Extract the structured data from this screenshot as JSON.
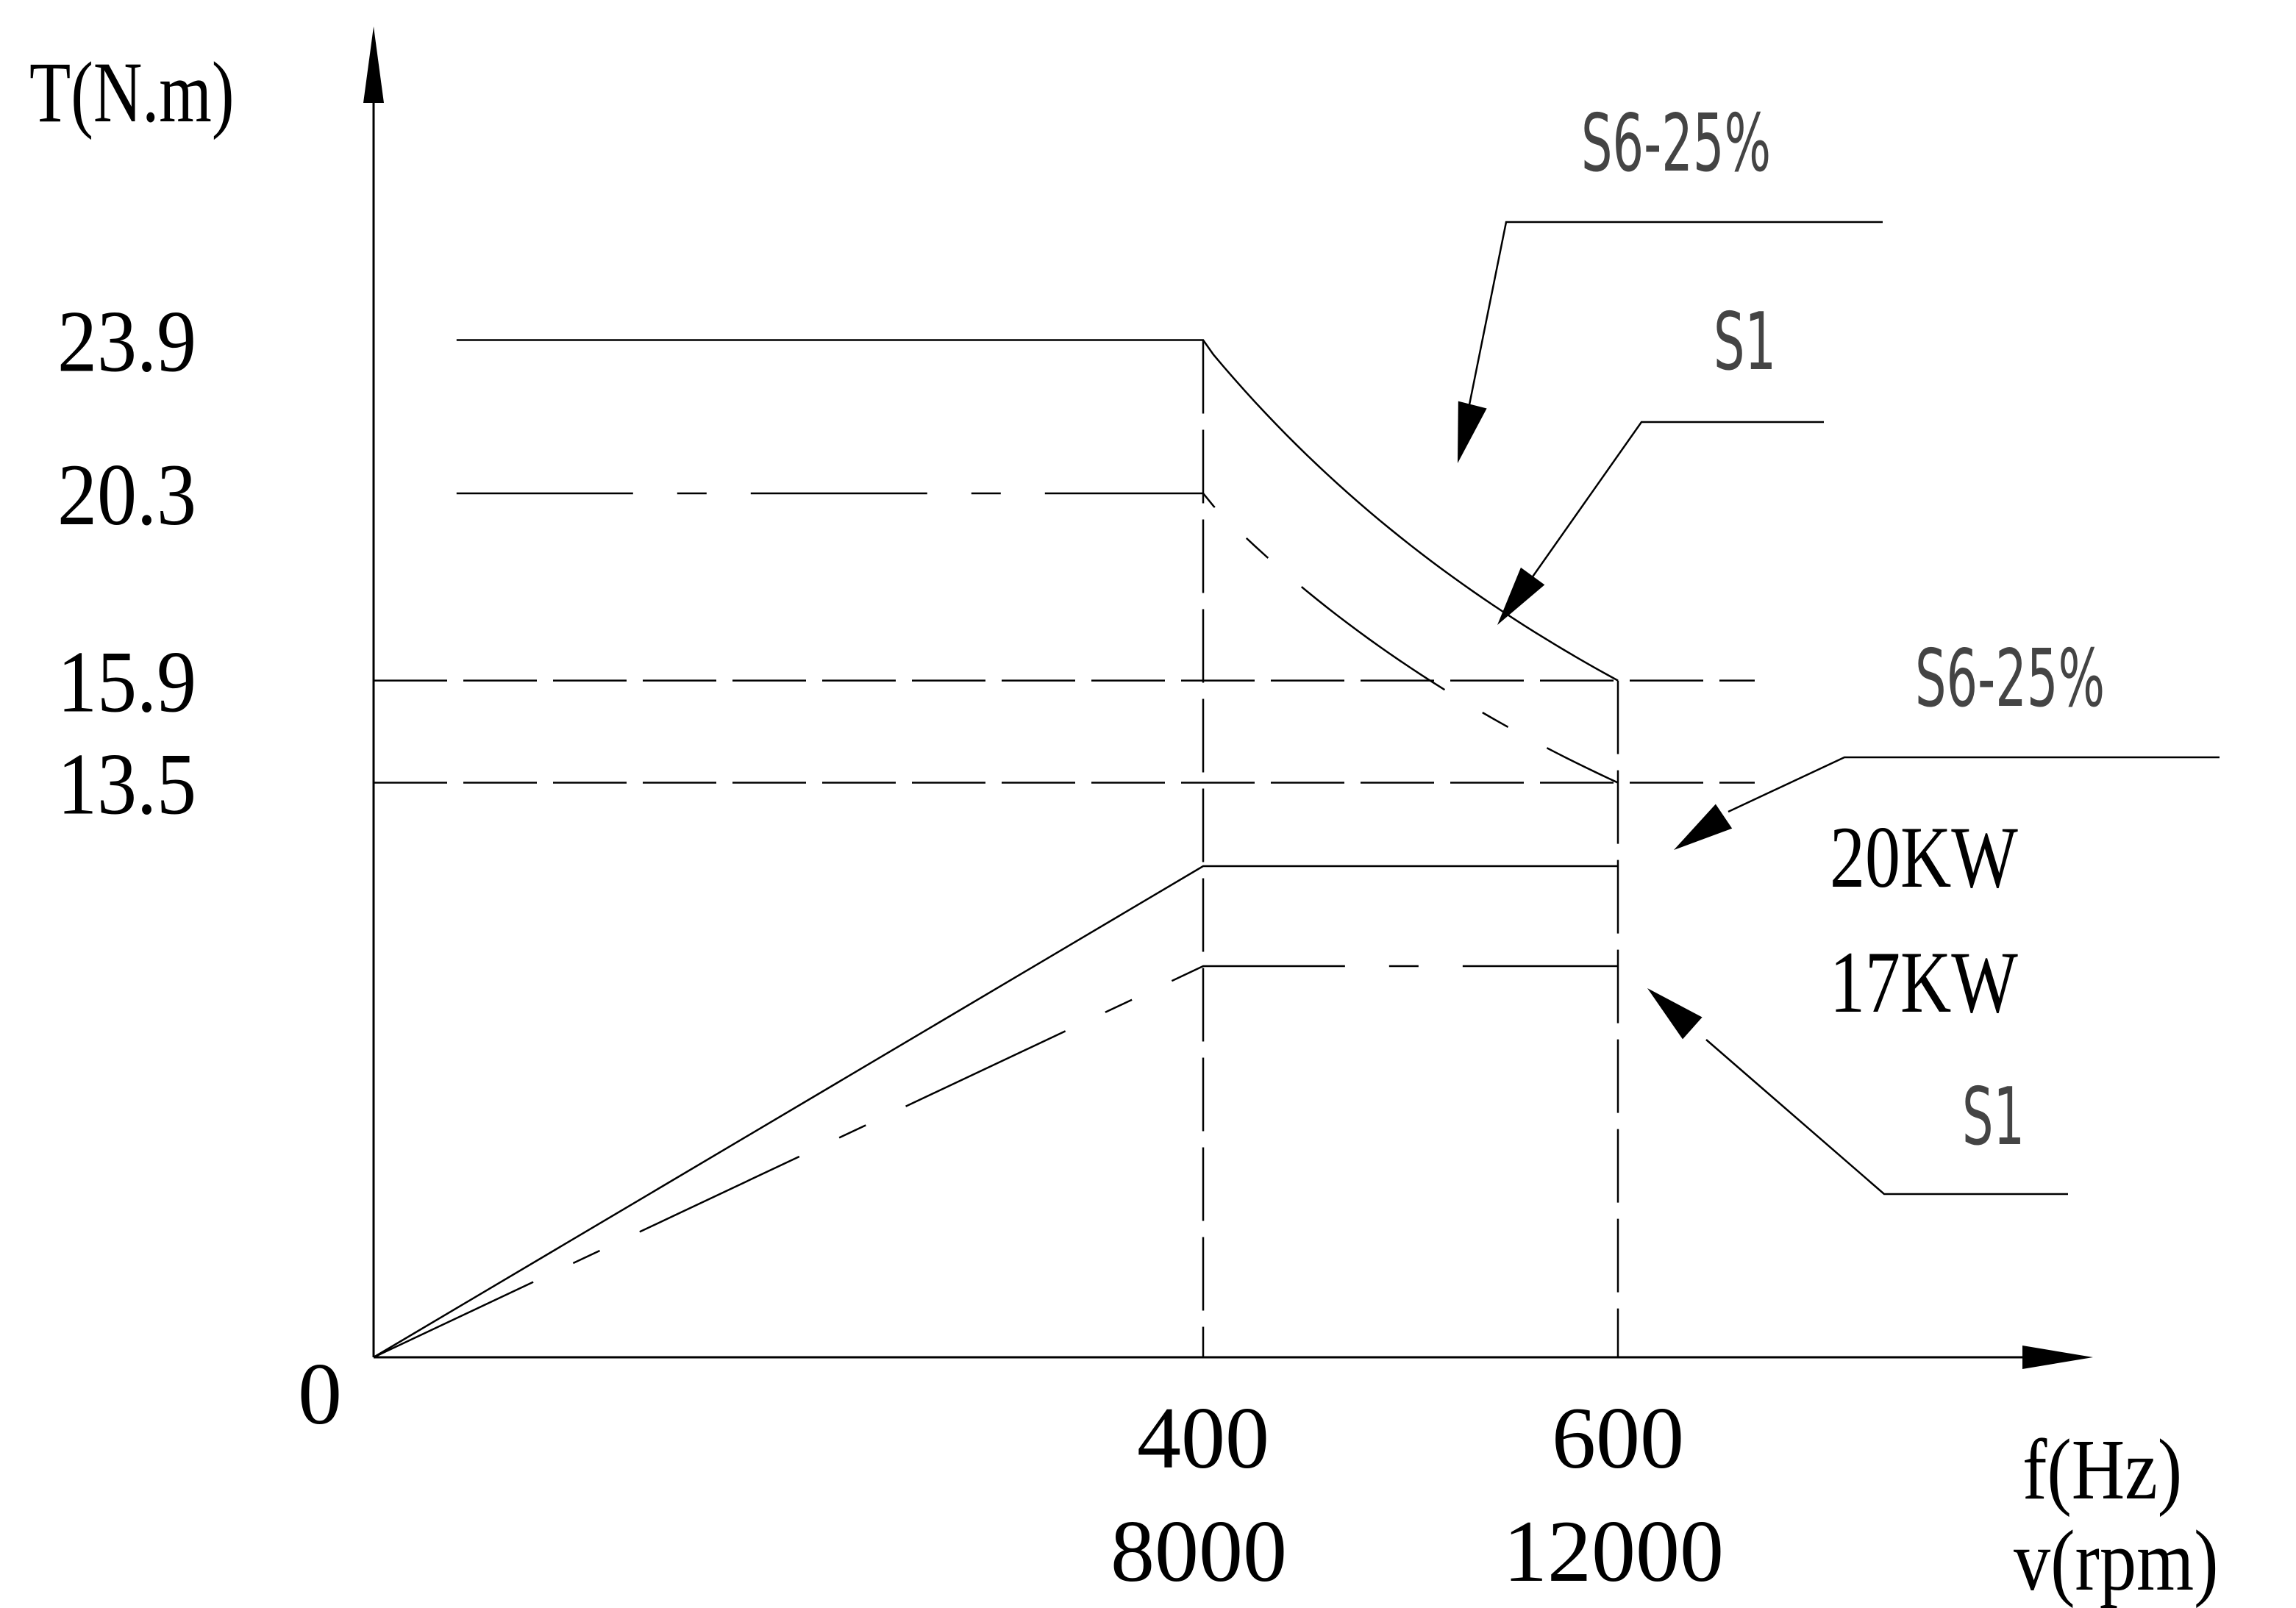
{
  "chart_data": {
    "type": "line",
    "title": "",
    "ylabel": "T(N.m)",
    "xlabel": "f(Hz)",
    "xlabel_secondary": "v(rpm)",
    "origin_label": "0",
    "xlim": [
      0,
      800
    ],
    "ylim": [
      0,
      26
    ],
    "x_ticks": [
      {
        "value": 400,
        "label": "400",
        "rpm": "8000"
      },
      {
        "value": 600,
        "label": "600",
        "rpm": "12000"
      }
    ],
    "y_ticks": [
      {
        "value": 23.9,
        "label": "23.9"
      },
      {
        "value": 20.3,
        "label": "20.3"
      },
      {
        "value": 15.9,
        "label": "15.9"
      },
      {
        "value": 13.5,
        "label": "13.5"
      }
    ],
    "series": [
      {
        "name": "S6-25%",
        "kind": "torque",
        "style": "solid",
        "x": [
          40,
          400,
          600
        ],
        "y": [
          23.9,
          23.9,
          15.9
        ]
      },
      {
        "name": "S1",
        "kind": "torque",
        "style": "dashdot",
        "x": [
          40,
          400,
          600
        ],
        "y": [
          20.3,
          20.3,
          13.5
        ]
      },
      {
        "name": "S6-25%",
        "kind": "power",
        "power_label": "20KW",
        "style": "solid",
        "x": [
          0,
          400,
          600
        ],
        "y": [
          0,
          11.54,
          11.54
        ]
      },
      {
        "name": "S1",
        "kind": "power",
        "power_label": "17KW",
        "style": "dashdot",
        "x": [
          0,
          400,
          600
        ],
        "y": [
          0,
          9.19,
          9.19
        ]
      }
    ],
    "grid": false,
    "legend": "annotations with leader arrows"
  }
}
